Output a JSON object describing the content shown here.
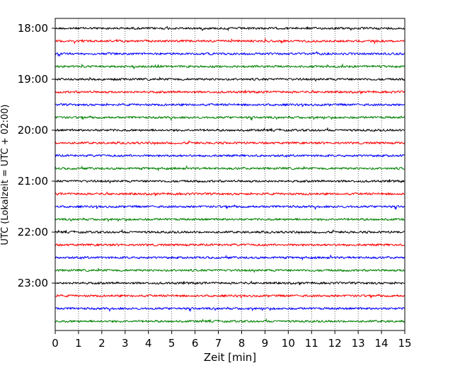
{
  "chart_data": {
    "type": "line",
    "xlabel": "Zeit  [min]",
    "ylabel": "UTC (Lokalzeit = UTC + 02:00)",
    "xlim": [
      0,
      15
    ],
    "x_ticks": [
      0,
      1,
      2,
      3,
      4,
      5,
      6,
      7,
      8,
      9,
      10,
      11,
      12,
      13,
      14,
      15
    ],
    "y_tick_labels": [
      "18:00",
      "19:00",
      "20:00",
      "21:00",
      "22:00",
      "23:00"
    ],
    "grid": "vertical-dotted",
    "row_interval_minutes": 15,
    "start_time": "18:00",
    "rows": 24,
    "colors": [
      "#000000",
      "#ff0000",
      "#0000ff",
      "#008000"
    ],
    "series": [
      {
        "start": "18:00"
      },
      {
        "start": "18:15"
      },
      {
        "start": "18:30"
      },
      {
        "start": "18:45"
      },
      {
        "start": "19:00"
      },
      {
        "start": "19:15"
      },
      {
        "start": "19:30"
      },
      {
        "start": "19:45"
      },
      {
        "start": "20:00"
      },
      {
        "start": "20:15"
      },
      {
        "start": "20:30"
      },
      {
        "start": "20:45"
      },
      {
        "start": "21:00"
      },
      {
        "start": "21:15"
      },
      {
        "start": "21:30"
      },
      {
        "start": "21:45"
      },
      {
        "start": "22:00"
      },
      {
        "start": "22:15"
      },
      {
        "start": "22:30"
      },
      {
        "start": "22:45"
      },
      {
        "start": "23:00"
      },
      {
        "start": "23:15"
      },
      {
        "start": "23:30"
      },
      {
        "start": "23:45"
      }
    ]
  }
}
